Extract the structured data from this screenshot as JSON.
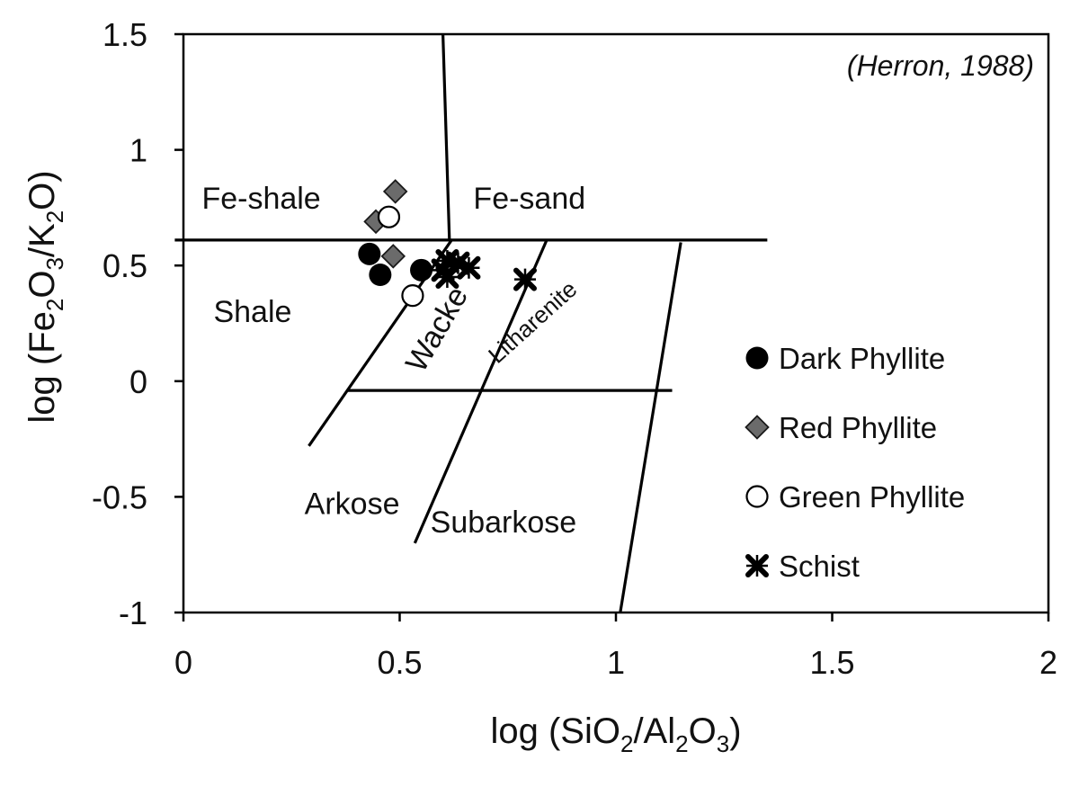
{
  "chart_data": {
    "type": "scatter",
    "title": "",
    "xlabel": {
      "prefix": "log (SiO",
      "sub1": "2",
      "mid": "/Al",
      "sub2": "2",
      "mid2": "O",
      "sub3": "3",
      "suffix": ")"
    },
    "ylabel": {
      "prefix": "log (Fe",
      "sub1": "2",
      "mid": "O",
      "sub2": "3",
      "mid2": "/K",
      "sub3": "2",
      "suffix": "O)"
    },
    "xlim": [
      0,
      2
    ],
    "ylim": [
      -1,
      1.5
    ],
    "x_ticks": [
      {
        "value": 0,
        "label": "0"
      },
      {
        "value": 0.5,
        "label": "0.5"
      },
      {
        "value": 1,
        "label": "1"
      },
      {
        "value": 1.5,
        "label": "1.5"
      },
      {
        "value": 2,
        "label": "2"
      }
    ],
    "y_ticks": [
      {
        "value": -1,
        "label": "-1"
      },
      {
        "value": -0.5,
        "label": "-0.5"
      },
      {
        "value": 0,
        "label": "0"
      },
      {
        "value": 0.5,
        "label": "0.5"
      },
      {
        "value": 1,
        "label": "1"
      },
      {
        "value": 1.5,
        "label": "1.5"
      }
    ],
    "citation": "(Herron, 1988)",
    "grid": false,
    "legend_position": "right",
    "boundaries": [
      {
        "x": [
          -0.02,
          1.35
        ],
        "y": [
          0.61,
          0.61
        ]
      },
      {
        "x": [
          0.615,
          0.6
        ],
        "y": [
          0.61,
          1.5
        ]
      },
      {
        "x": [
          0.29,
          0.62
        ],
        "y": [
          -0.28,
          0.61
        ]
      },
      {
        "x": [
          0.38,
          1.13
        ],
        "y": [
          -0.04,
          -0.04
        ]
      },
      {
        "x": [
          0.535,
          0.84
        ],
        "y": [
          -0.7,
          0.61
        ]
      },
      {
        "x": [
          1.01,
          1.15
        ],
        "y": [
          -1.0,
          0.6
        ]
      }
    ],
    "regions": [
      {
        "id": "fe-shale",
        "label": "Fe-shale",
        "x": 0.18,
        "y": 0.78,
        "rotate": 0,
        "size": "normal"
      },
      {
        "id": "fe-sand",
        "label": "Fe-sand",
        "x": 0.8,
        "y": 0.78,
        "rotate": 0,
        "size": "normal"
      },
      {
        "id": "shale",
        "label": "Shale",
        "x": 0.16,
        "y": 0.29,
        "rotate": 0,
        "size": "normal"
      },
      {
        "id": "wacke",
        "label": "Wacke",
        "x": 0.59,
        "y": 0.22,
        "rotate": -60,
        "size": "normal"
      },
      {
        "id": "litharenite",
        "label": "Litharenite",
        "x": 0.81,
        "y": 0.25,
        "rotate": -42,
        "size": "small"
      },
      {
        "id": "arkose",
        "label": "Arkose",
        "x": 0.39,
        "y": -0.54,
        "rotate": 0,
        "size": "normal"
      },
      {
        "id": "subarkose",
        "label": "Subarkose",
        "x": 0.74,
        "y": -0.62,
        "rotate": 0,
        "size": "normal"
      }
    ],
    "series": [
      {
        "name": "Dark Phyllite",
        "marker": "filled-circle",
        "color": "#000000",
        "points": [
          {
            "x": 0.43,
            "y": 0.55
          },
          {
            "x": 0.455,
            "y": 0.46
          },
          {
            "x": 0.55,
            "y": 0.48
          }
        ]
      },
      {
        "name": "Red Phyllite",
        "marker": "diamond",
        "color": "#666666",
        "points": [
          {
            "x": 0.49,
            "y": 0.82
          },
          {
            "x": 0.445,
            "y": 0.69
          },
          {
            "x": 0.485,
            "y": 0.54
          }
        ]
      },
      {
        "name": "Green Phyllite",
        "marker": "open-circle",
        "color": "#000000",
        "points": [
          {
            "x": 0.475,
            "y": 0.71
          },
          {
            "x": 0.53,
            "y": 0.37
          }
        ]
      },
      {
        "name": "Schist",
        "marker": "x-star",
        "color": "#000000",
        "points": [
          {
            "x": 0.61,
            "y": 0.52
          },
          {
            "x": 0.635,
            "y": 0.51
          },
          {
            "x": 0.66,
            "y": 0.49
          },
          {
            "x": 0.6,
            "y": 0.48
          },
          {
            "x": 0.61,
            "y": 0.45
          },
          {
            "x": 0.79,
            "y": 0.44
          }
        ]
      }
    ]
  }
}
